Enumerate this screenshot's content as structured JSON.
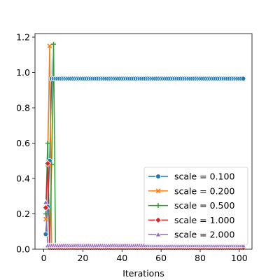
{
  "chart_data": {
    "type": "line",
    "title": "",
    "xlabel": "Iterations",
    "ylabel": "",
    "xlim": [
      -4.5,
      106.5
    ],
    "ylim": [
      0,
      1.22
    ],
    "xticks": [
      0,
      20,
      40,
      60,
      80,
      100
    ],
    "yticks": [
      0.0,
      0.2,
      0.4,
      0.6,
      0.8,
      1.0,
      1.2
    ],
    "xtick_labels": [
      "0",
      "20",
      "40",
      "60",
      "80",
      "100"
    ],
    "ytick_labels": [
      "0.0",
      "0.2",
      "0.4",
      "0.6",
      "0.8",
      "1.0",
      "1.2"
    ],
    "grid": false,
    "legend_position": "lower right",
    "series": [
      {
        "name": "scale = 0.100",
        "color": "#1f77b4",
        "marker": "circle",
        "x": [
          1,
          2,
          3,
          4,
          5,
          6,
          7,
          8,
          9,
          10,
          11,
          12,
          13,
          14,
          15,
          16,
          17,
          18,
          19,
          20,
          21,
          22,
          23,
          24,
          25,
          26,
          27,
          28,
          29,
          30,
          31,
          32,
          33,
          34,
          35,
          36,
          37,
          38,
          39,
          40,
          41,
          42,
          43,
          44,
          45,
          46,
          47,
          48,
          49,
          50,
          51,
          52,
          53,
          54,
          55,
          56,
          57,
          58,
          59,
          60,
          61,
          62,
          63,
          64,
          65,
          66,
          67,
          68,
          69,
          70,
          71,
          72,
          73,
          74,
          75,
          76,
          77,
          78,
          79,
          80,
          81,
          82,
          83,
          84,
          85,
          86,
          87,
          88,
          89,
          90,
          91,
          92,
          93,
          94,
          95,
          96,
          97,
          98,
          99,
          100,
          101,
          102
        ],
        "y": [
          0.085,
          0.24,
          0.5,
          0.965,
          0.965,
          0.965,
          0.965,
          0.965,
          0.965,
          0.965,
          0.965,
          0.965,
          0.965,
          0.965,
          0.965,
          0.965,
          0.965,
          0.965,
          0.965,
          0.965,
          0.965,
          0.965,
          0.965,
          0.965,
          0.965,
          0.965,
          0.965,
          0.965,
          0.965,
          0.965,
          0.965,
          0.965,
          0.965,
          0.965,
          0.965,
          0.965,
          0.965,
          0.965,
          0.965,
          0.965,
          0.965,
          0.965,
          0.965,
          0.965,
          0.965,
          0.965,
          0.965,
          0.965,
          0.965,
          0.965,
          0.965,
          0.965,
          0.965,
          0.965,
          0.965,
          0.965,
          0.965,
          0.965,
          0.965,
          0.965,
          0.965,
          0.965,
          0.965,
          0.965,
          0.965,
          0.965,
          0.965,
          0.965,
          0.965,
          0.965,
          0.965,
          0.965,
          0.965,
          0.965,
          0.965,
          0.965,
          0.965,
          0.965,
          0.965,
          0.965,
          0.965,
          0.965,
          0.965,
          0.965,
          0.965,
          0.965,
          0.965,
          0.965,
          0.965,
          0.965,
          0.965,
          0.965,
          0.965,
          0.965,
          0.965,
          0.965,
          0.965,
          0.965,
          0.965,
          0.965,
          0.965,
          0.965
        ]
      },
      {
        "name": "scale = 0.200",
        "color": "#ff7f0e",
        "marker": "x",
        "x": [
          1,
          2,
          3,
          4,
          5,
          6,
          7,
          8,
          9,
          10,
          11,
          12,
          13,
          14,
          15,
          16,
          17,
          18,
          19,
          20,
          21,
          22,
          23,
          24,
          25,
          26,
          27,
          28,
          29,
          30,
          31,
          32,
          33,
          34,
          35,
          36,
          37,
          38,
          39,
          40,
          41,
          42,
          43,
          44,
          45,
          46,
          47,
          48,
          49,
          50,
          51,
          52,
          53,
          54,
          55,
          56,
          57,
          58,
          59,
          60,
          61,
          62,
          63,
          64,
          65,
          66,
          67,
          68,
          69,
          70,
          71,
          72,
          73,
          74,
          75,
          76,
          77,
          78,
          79,
          80,
          81,
          82,
          83,
          84,
          85,
          86,
          87,
          88,
          89,
          90,
          91,
          92,
          93,
          94,
          95,
          96,
          97,
          98,
          99,
          100,
          101,
          102
        ],
        "y": [
          0.17,
          0.48,
          1.15,
          0.02,
          0.02,
          0.02,
          0.02,
          0.02,
          0.02,
          0.02,
          0.02,
          0.02,
          0.02,
          0.02,
          0.02,
          0.02,
          0.02,
          0.02,
          0.02,
          0.02,
          0.02,
          0.02,
          0.02,
          0.02,
          0.02,
          0.02,
          0.02,
          0.02,
          0.02,
          0.02,
          0.02,
          0.02,
          0.02,
          0.02,
          0.02,
          0.02,
          0.02,
          0.02,
          0.02,
          0.02,
          0.02,
          0.02,
          0.02,
          0.02,
          0.02,
          0.02,
          0.02,
          0.02,
          0.02,
          0.02,
          0.02,
          0.02,
          0.02,
          0.02,
          0.02,
          0.02,
          0.02,
          0.02,
          0.02,
          0.02,
          0.02,
          0.02,
          0.02,
          0.02,
          0.02,
          0.02,
          0.02,
          0.02,
          0.02,
          0.02,
          0.02,
          0.02,
          0.02,
          0.02,
          0.02,
          0.02,
          0.02,
          0.02,
          0.02,
          0.02,
          0.02,
          0.02,
          0.02,
          0.02,
          0.02,
          0.02,
          0.02,
          0.02,
          0.02,
          0.02,
          0.02,
          0.02,
          0.02,
          0.02,
          0.02,
          0.02,
          0.02,
          0.02,
          0.02,
          0.02,
          0.02,
          0.02
        ]
      },
      {
        "name": "scale = 0.500",
        "color": "#2ca02c",
        "marker": "plus",
        "x": [
          1,
          2,
          3,
          4,
          5,
          6,
          7,
          8,
          9,
          10,
          11,
          12,
          13,
          14,
          15,
          16,
          17,
          18,
          19,
          20,
          21,
          22,
          23,
          24,
          25,
          26,
          27,
          28,
          29,
          30,
          31,
          32,
          33,
          34,
          35,
          36,
          37,
          38,
          39,
          40,
          41,
          42,
          43,
          44,
          45,
          46,
          47,
          48,
          49,
          50,
          51,
          52,
          53,
          54,
          55,
          56,
          57,
          58,
          59,
          60,
          61,
          62,
          63,
          64,
          65,
          66,
          67,
          68,
          69,
          70,
          71,
          72,
          73,
          74,
          75,
          76,
          77,
          78,
          79,
          80,
          81,
          82,
          83,
          84,
          85,
          86,
          87,
          88,
          89,
          90,
          91,
          92,
          93,
          94,
          95,
          96,
          97,
          98,
          99,
          100,
          101,
          102
        ],
        "y": [
          0.2,
          0.6,
          0.01,
          0.48,
          1.16,
          0.01,
          0.01,
          0.01,
          0.01,
          0.01,
          0.01,
          0.01,
          0.01,
          0.01,
          0.01,
          0.01,
          0.01,
          0.01,
          0.01,
          0.01,
          0.01,
          0.01,
          0.01,
          0.01,
          0.01,
          0.01,
          0.01,
          0.01,
          0.01,
          0.01,
          0.01,
          0.01,
          0.01,
          0.01,
          0.01,
          0.01,
          0.01,
          0.01,
          0.01,
          0.01,
          0.01,
          0.01,
          0.01,
          0.01,
          0.01,
          0.01,
          0.01,
          0.01,
          0.01,
          0.01,
          0.01,
          0.01,
          0.01,
          0.01,
          0.01,
          0.01,
          0.01,
          0.01,
          0.01,
          0.01,
          0.01,
          0.01,
          0.01,
          0.01,
          0.01,
          0.01,
          0.01,
          0.01,
          0.01,
          0.01,
          0.01,
          0.01,
          0.01,
          0.01,
          0.01,
          0.01,
          0.01,
          0.01,
          0.01,
          0.01,
          0.01,
          0.01,
          0.01,
          0.01,
          0.01,
          0.01,
          0.01,
          0.01,
          0.01,
          0.01,
          0.01,
          0.01,
          0.01,
          0.01,
          0.01,
          0.01,
          0.01,
          0.01,
          0.01,
          0.01,
          0.01,
          0.01
        ]
      },
      {
        "name": "scale = 1.000",
        "color": "#d62728",
        "marker": "diamond",
        "x": [
          1,
          2,
          3,
          4,
          5,
          6,
          7,
          8,
          9,
          10,
          11,
          12,
          13,
          14,
          15,
          16,
          17,
          18,
          19,
          20,
          21,
          22,
          23,
          24,
          25,
          26,
          27,
          28,
          29,
          30,
          31,
          32,
          33,
          34,
          35,
          36,
          37,
          38,
          39,
          40,
          41,
          42,
          43,
          44,
          45,
          46,
          47,
          48,
          49,
          50,
          51,
          52,
          53,
          54,
          55,
          56,
          57,
          58,
          59,
          60,
          61,
          62,
          63,
          64,
          65,
          66,
          67,
          68,
          69,
          70,
          71,
          72,
          73,
          74,
          75,
          76,
          77,
          78,
          79,
          80,
          81,
          82,
          83,
          84,
          85,
          86,
          87,
          88,
          89,
          90,
          91,
          92,
          93,
          94,
          95,
          96,
          97,
          98,
          99,
          100,
          101,
          102
        ],
        "y": [
          0.235,
          0.485,
          0.01,
          0.01,
          0.01,
          0.01,
          0.01,
          0.01,
          0.01,
          0.01,
          0.01,
          0.01,
          0.01,
          0.01,
          0.01,
          0.01,
          0.01,
          0.01,
          0.01,
          0.01,
          0.01,
          0.01,
          0.01,
          0.01,
          0.01,
          0.01,
          0.01,
          0.01,
          0.01,
          0.01,
          0.01,
          0.01,
          0.01,
          0.01,
          0.01,
          0.01,
          0.01,
          0.01,
          0.01,
          0.01,
          0.01,
          0.01,
          0.01,
          0.01,
          0.01,
          0.01,
          0.01,
          0.01,
          0.01,
          0.01,
          0.01,
          0.01,
          0.01,
          0.01,
          0.01,
          0.01,
          0.01,
          0.01,
          0.01,
          0.01,
          0.01,
          0.01,
          0.01,
          0.01,
          0.01,
          0.01,
          0.01,
          0.01,
          0.01,
          0.01,
          0.01,
          0.01,
          0.01,
          0.01,
          0.01,
          0.01,
          0.01,
          0.01,
          0.01,
          0.01,
          0.01,
          0.01,
          0.01,
          0.01,
          0.01,
          0.01,
          0.01,
          0.01,
          0.01,
          0.01,
          0.01,
          0.01,
          0.01,
          0.01,
          0.01,
          0.01,
          0.01,
          0.01,
          0.01,
          0.01,
          0.01,
          0.01
        ]
      },
      {
        "name": "scale = 2.000",
        "color": "#9467bd",
        "marker": "triangle",
        "x": [
          1,
          2,
          3,
          4,
          5,
          6,
          7,
          8,
          9,
          10,
          11,
          12,
          13,
          14,
          15,
          16,
          17,
          18,
          19,
          20,
          21,
          22,
          23,
          24,
          25,
          26,
          27,
          28,
          29,
          30,
          31,
          32,
          33,
          34,
          35,
          36,
          37,
          38,
          39,
          40,
          41,
          42,
          43,
          44,
          45,
          46,
          47,
          48,
          49,
          50,
          51,
          52,
          53,
          54,
          55,
          56,
          57,
          58,
          59,
          60,
          61,
          62,
          63,
          64,
          65,
          66,
          67,
          68,
          69,
          70,
          71,
          72,
          73,
          74,
          75,
          76,
          77,
          78,
          79,
          80,
          81,
          82,
          83,
          84,
          85,
          86,
          87,
          88,
          89,
          90,
          91,
          92,
          93,
          94,
          95,
          96,
          97,
          98,
          99,
          100,
          101,
          102
        ],
        "y": [
          0.265,
          0.02,
          0.02,
          0.02,
          0.02,
          0.02,
          0.02,
          0.02,
          0.02,
          0.02,
          0.02,
          0.02,
          0.02,
          0.02,
          0.02,
          0.02,
          0.02,
          0.02,
          0.02,
          0.02,
          0.02,
          0.02,
          0.02,
          0.02,
          0.02,
          0.02,
          0.02,
          0.02,
          0.02,
          0.02,
          0.02,
          0.02,
          0.02,
          0.02,
          0.02,
          0.02,
          0.02,
          0.02,
          0.02,
          0.02,
          0.02,
          0.02,
          0.02,
          0.02,
          0.02,
          0.02,
          0.02,
          0.02,
          0.02,
          0.02,
          0.02,
          0.02,
          0.02,
          0.02,
          0.02,
          0.02,
          0.02,
          0.02,
          0.02,
          0.02,
          0.02,
          0.02,
          0.02,
          0.02,
          0.02,
          0.02,
          0.02,
          0.02,
          0.02,
          0.02,
          0.02,
          0.02,
          0.02,
          0.02,
          0.02,
          0.02,
          0.02,
          0.02,
          0.02,
          0.02,
          0.02,
          0.02,
          0.02,
          0.02,
          0.02,
          0.02,
          0.02,
          0.02,
          0.02,
          0.02,
          0.02,
          0.02,
          0.02,
          0.02,
          0.02,
          0.02,
          0.02,
          0.02,
          0.02,
          0.02,
          0.02,
          0.02
        ]
      }
    ],
    "bands": [
      {
        "series": "scale = 0.100",
        "color": "#1f77b4",
        "x": [
          1,
          2,
          3,
          4,
          5
        ],
        "lower": [
          0.06,
          0.18,
          0.4,
          0.8,
          0.955
        ],
        "upper": [
          0.11,
          0.3,
          0.62,
          1.12,
          0.975
        ]
      },
      {
        "series": "scale = 0.200",
        "color": "#ff7f0e",
        "x": [
          1,
          2,
          3,
          4
        ],
        "lower": [
          0.12,
          0.35,
          0.9,
          0.0
        ],
        "upper": [
          0.22,
          0.62,
          1.16,
          0.05
        ]
      },
      {
        "series": "scale = 0.500",
        "color": "#2ca02c",
        "x": [
          1,
          2,
          3,
          4,
          5,
          6
        ],
        "lower": [
          0.14,
          0.4,
          0.0,
          0.3,
          0.9,
          0.0
        ],
        "upper": [
          0.26,
          0.8,
          0.05,
          0.66,
          1.16,
          0.05
        ]
      },
      {
        "series": "scale = 1.000",
        "color": "#d62728",
        "x": [
          1,
          2,
          3
        ],
        "lower": [
          0.18,
          0.36,
          0.0
        ],
        "upper": [
          0.29,
          0.6,
          0.05
        ]
      },
      {
        "series": "scale = 2.000",
        "color": "#9467bd",
        "x": [
          1,
          2,
          3
        ],
        "lower": [
          0.2,
          0.0,
          0.0
        ],
        "upper": [
          0.33,
          0.06,
          0.05
        ]
      }
    ]
  }
}
